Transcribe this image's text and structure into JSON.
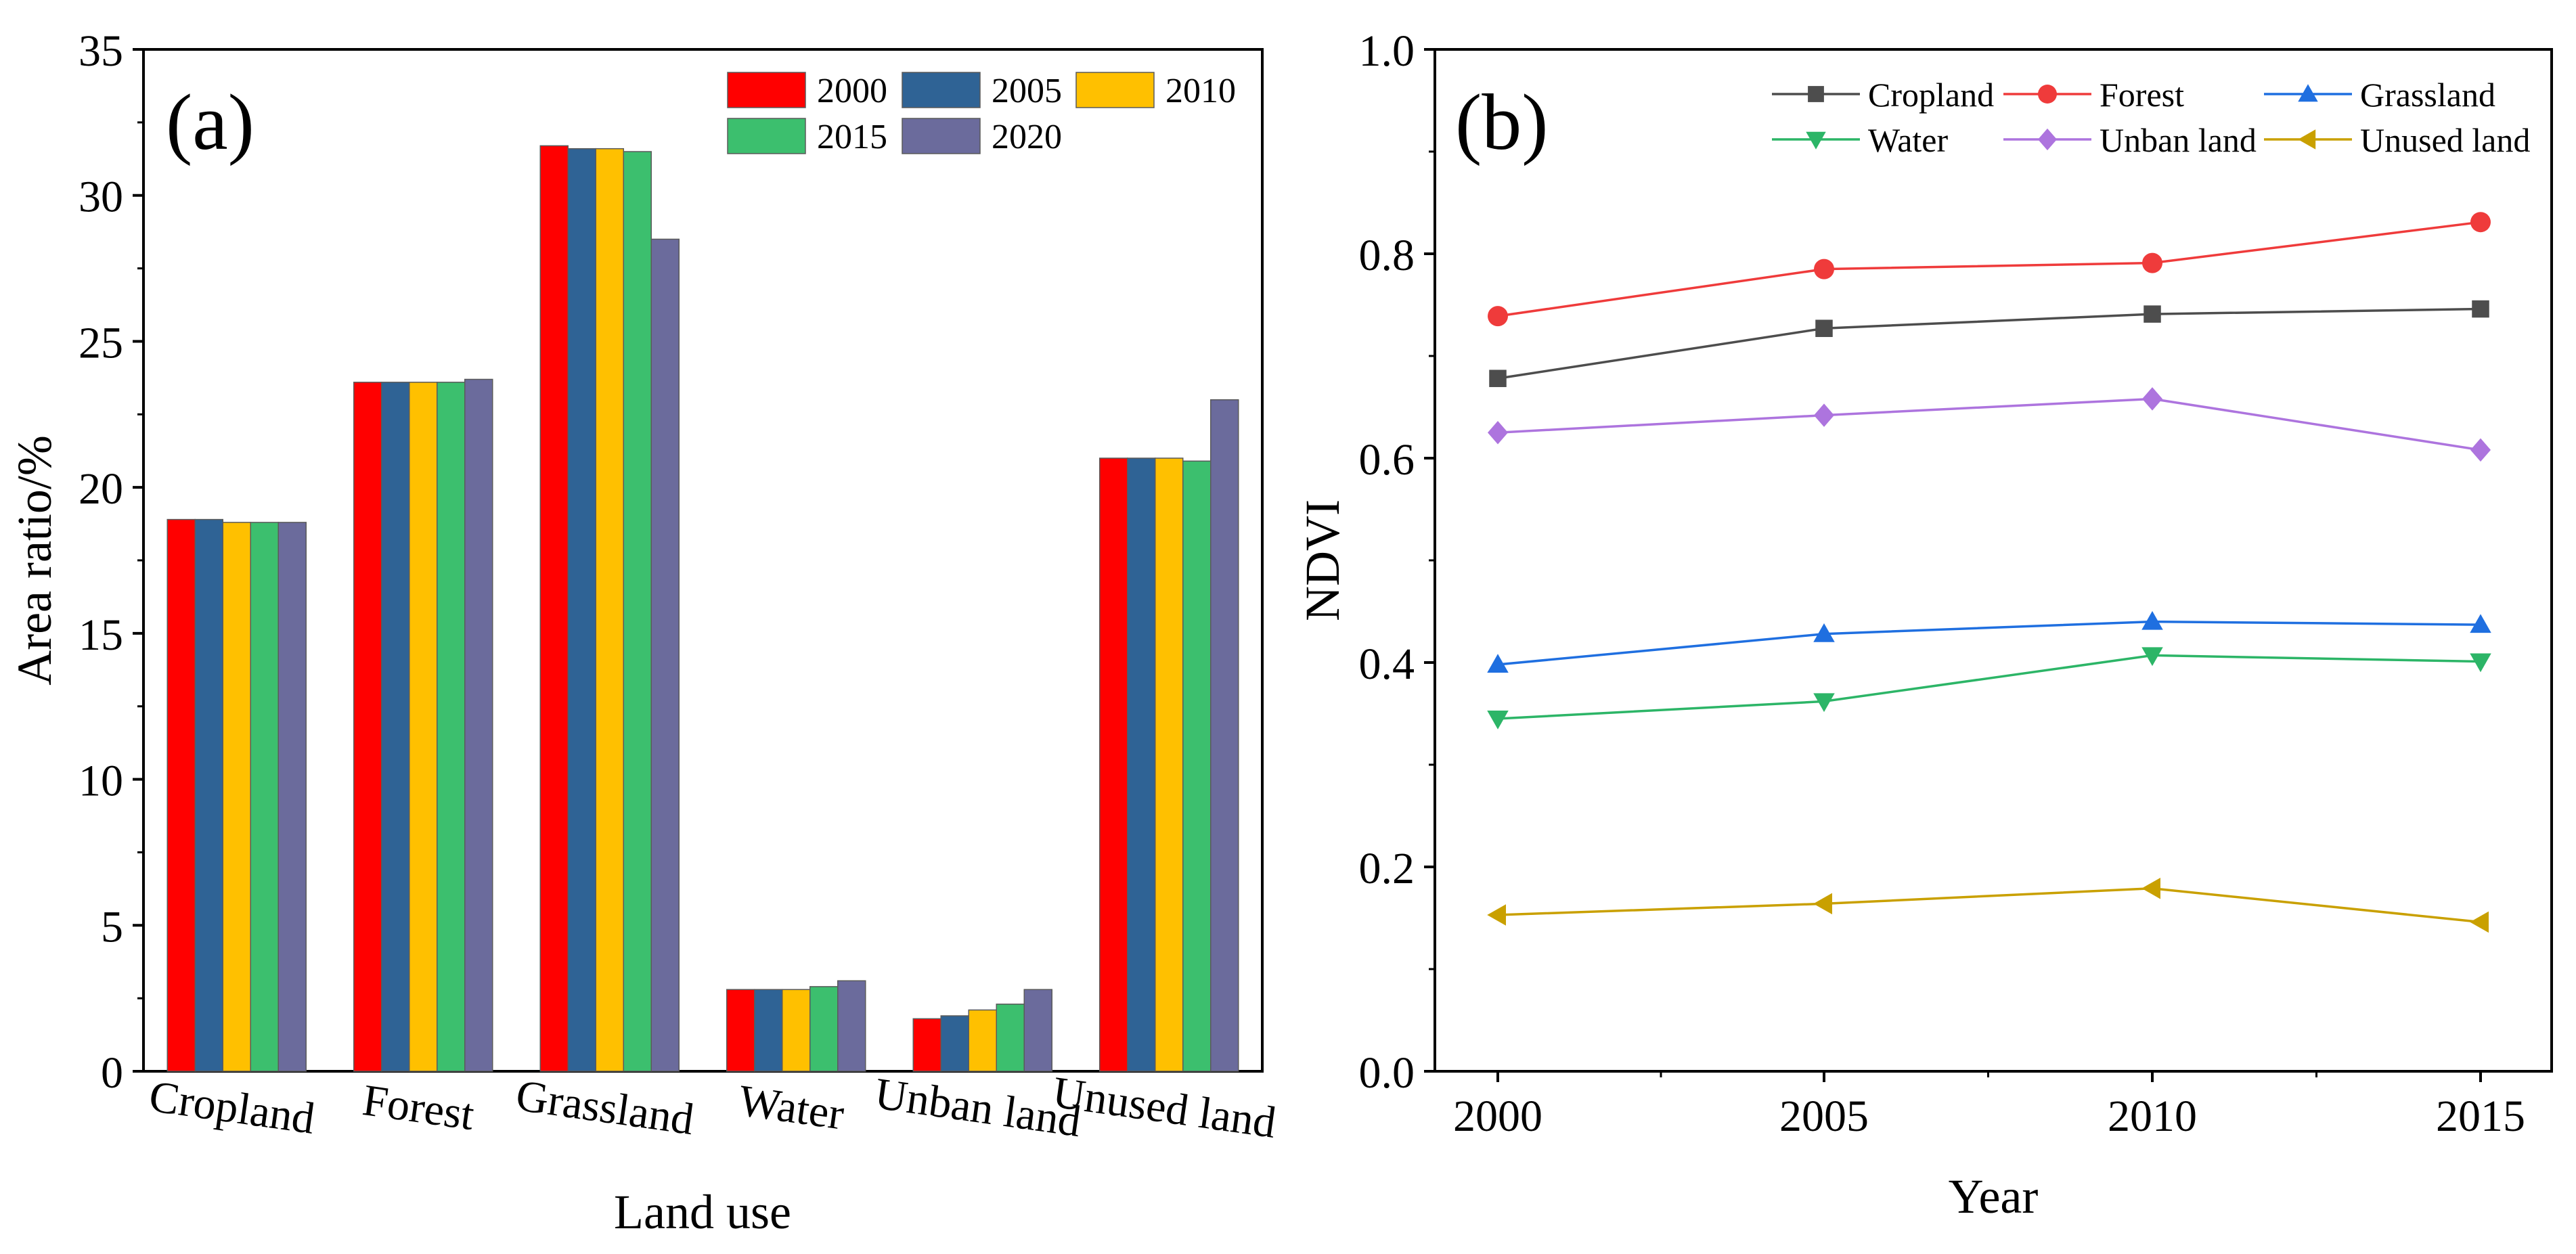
{
  "chart_data": [
    {
      "panel_label": "(a)",
      "type": "bar",
      "xlabel": "Land use",
      "ylabel": "Area ratio/%",
      "ylim": [
        0,
        35
      ],
      "yticks": [
        "0",
        "5",
        "10",
        "15",
        "20",
        "25",
        "30",
        "35"
      ],
      "categories": [
        "Cropland",
        "Forest",
        "Grassland",
        "Water",
        "Unban land",
        "Unused land"
      ],
      "legend_position": "top-right",
      "series": [
        {
          "name": "2000",
          "color": "#ff0000",
          "values": [
            18.9,
            23.6,
            31.7,
            2.8,
            1.8,
            21.0
          ]
        },
        {
          "name": "2005",
          "color": "#2f6395",
          "values": [
            18.9,
            23.6,
            31.6,
            2.8,
            1.9,
            21.0
          ]
        },
        {
          "name": "2010",
          "color": "#ffc000",
          "values": [
            18.8,
            23.6,
            31.6,
            2.8,
            2.1,
            21.0
          ]
        },
        {
          "name": "2015",
          "color": "#3cbf6e",
          "values": [
            18.8,
            23.6,
            31.5,
            2.9,
            2.3,
            20.9
          ]
        },
        {
          "name": "2020",
          "color": "#6b6b9c",
          "values": [
            18.8,
            23.7,
            28.5,
            3.1,
            2.8,
            23.0
          ]
        }
      ]
    },
    {
      "panel_label": "(b)",
      "type": "line",
      "xlabel": "Year",
      "ylabel": "NDVI",
      "x": [
        "2000",
        "2005",
        "2010",
        "2015"
      ],
      "ylim": [
        0.0,
        1.0
      ],
      "yticks": [
        "0.0",
        "0.2",
        "0.4",
        "0.6",
        "0.8",
        "1.0"
      ],
      "legend_position": "top",
      "series": [
        {
          "name": "Cropland",
          "color": "#4d4d4d",
          "marker": "square",
          "values": [
            0.678,
            0.727,
            0.741,
            0.746
          ]
        },
        {
          "name": "Forest",
          "color": "#ef3b3b",
          "marker": "circle",
          "values": [
            0.739,
            0.785,
            0.791,
            0.831
          ]
        },
        {
          "name": "Grassland",
          "color": "#1f6fe0",
          "marker": "triangle-up",
          "values": [
            0.398,
            0.428,
            0.44,
            0.437
          ]
        },
        {
          "name": "Water",
          "color": "#2cb567",
          "marker": "triangle-down",
          "values": [
            0.345,
            0.362,
            0.407,
            0.401
          ]
        },
        {
          "name": "Unban land",
          "color": "#ad74de",
          "marker": "diamond",
          "values": [
            0.625,
            0.642,
            0.658,
            0.608
          ]
        },
        {
          "name": "Unused land",
          "color": "#c9a000",
          "marker": "triangle-left",
          "values": [
            0.153,
            0.164,
            0.179,
            0.146
          ]
        }
      ]
    }
  ]
}
